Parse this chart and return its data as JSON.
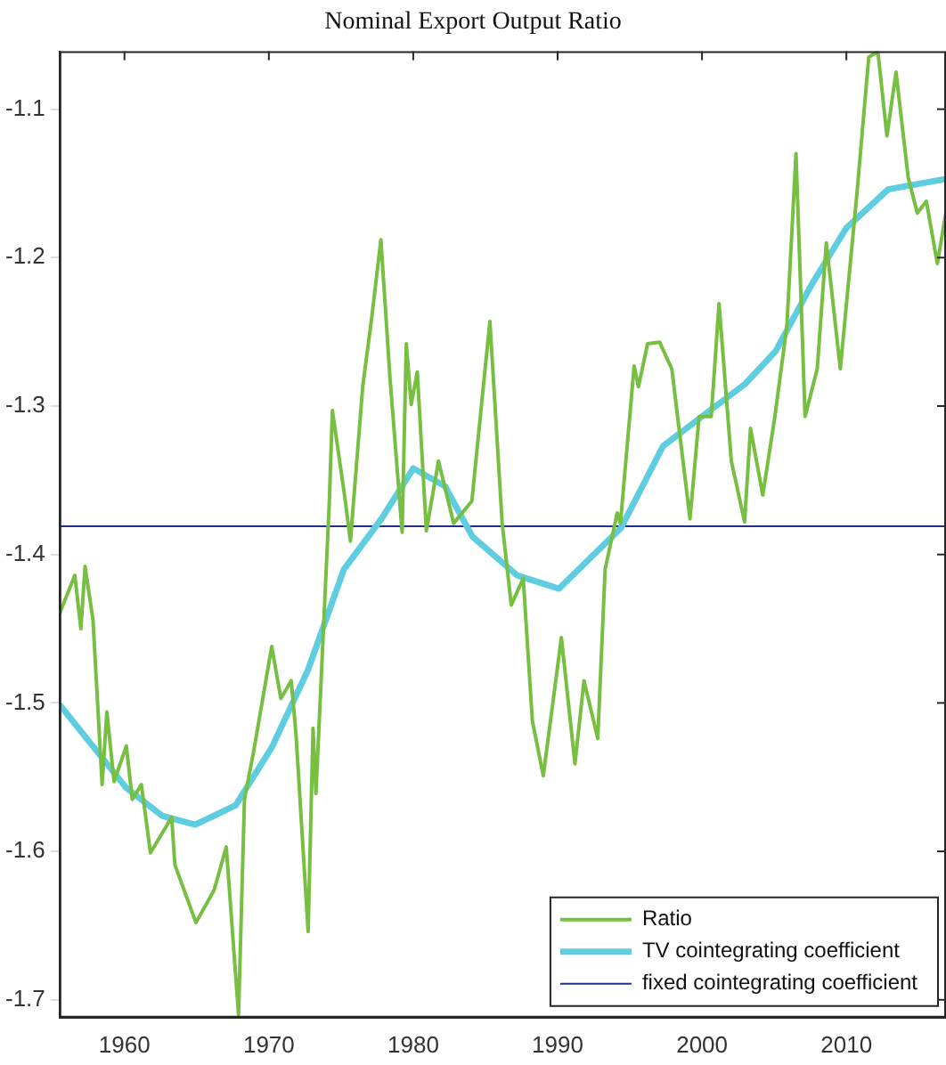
{
  "chart_data": {
    "type": "line",
    "title": "Nominal Export Output Ratio",
    "xlim": [
      1955.5,
      2016.9
    ],
    "xticks": [
      1960,
      1970,
      1980,
      1990,
      2000,
      2010
    ],
    "ylim": [
      -1.712,
      -1.061
    ],
    "yticks": [
      -1.1,
      -1.2,
      -1.3,
      -1.4,
      -1.5,
      -1.6,
      -1.7
    ],
    "grid": false,
    "legend": "bottom right",
    "marker": "none",
    "series": [
      {
        "name": "Ratio",
        "color": "#77bf41",
        "x": [
          1955.5,
          1956.56,
          1956.98,
          1957.27,
          1957.82,
          1958.45,
          1958.78,
          1959.28,
          1960.13,
          1960.54,
          1961.17,
          1961.8,
          1963.27,
          1963.49,
          1964.95,
          1966.21,
          1967.05,
          1967.9,
          1968.31,
          1968.94,
          1970.2,
          1970.83,
          1971.55,
          1971.88,
          1972.72,
          1973.06,
          1973.26,
          1974.19,
          1974.4,
          1975.24,
          1975.65,
          1976.5,
          1977.13,
          1977.76,
          1978.39,
          1979.23,
          1979.52,
          1979.86,
          1980.28,
          1980.91,
          1981.75,
          1982.8,
          1984.06,
          1985.31,
          1986.16,
          1986.79,
          1987.62,
          1988.25,
          1989.01,
          1990.26,
          1991.2,
          1991.83,
          1992.78,
          1993.29,
          1994.13,
          1994.35,
          1995.3,
          1995.6,
          1996.23,
          1997.07,
          1997.91,
          1999.17,
          1999.8,
          2000.64,
          2001.18,
          2002.03,
          2002.95,
          2003.36,
          2004.21,
          2005.05,
          2005.88,
          2006.51,
          2007.14,
          2007.98,
          2008.61,
          2009.58,
          2010.29,
          2010.72,
          2011.55,
          2012.18,
          2012.81,
          2013.44,
          2014.28,
          2014.91,
          2015.54,
          2016.3,
          2016.89
        ],
        "values": [
          -1.44,
          -1.414,
          -1.45,
          -1.408,
          -1.444,
          -1.555,
          -1.506,
          -1.553,
          -1.529,
          -1.565,
          -1.555,
          -1.601,
          -1.577,
          -1.609,
          -1.648,
          -1.626,
          -1.597,
          -1.71,
          -1.565,
          -1.533,
          -1.462,
          -1.497,
          -1.485,
          -1.521,
          -1.654,
          -1.517,
          -1.561,
          -1.364,
          -1.303,
          -1.36,
          -1.391,
          -1.287,
          -1.24,
          -1.188,
          -1.281,
          -1.385,
          -1.258,
          -1.299,
          -1.277,
          -1.384,
          -1.337,
          -1.379,
          -1.364,
          -1.243,
          -1.379,
          -1.434,
          -1.416,
          -1.512,
          -1.549,
          -1.456,
          -1.541,
          -1.485,
          -1.524,
          -1.41,
          -1.372,
          -1.379,
          -1.273,
          -1.287,
          -1.258,
          -1.257,
          -1.275,
          -1.376,
          -1.307,
          -1.307,
          -1.231,
          -1.337,
          -1.378,
          -1.315,
          -1.36,
          -1.307,
          -1.246,
          -1.13,
          -1.307,
          -1.275,
          -1.19,
          -1.275,
          -1.202,
          -1.158,
          -1.065,
          -1.061,
          -1.118,
          -1.075,
          -1.146,
          -1.17,
          -1.162,
          -1.204,
          -1.17
        ]
      },
      {
        "name": "TV cointegrating coefficient",
        "color": "#5fcde0",
        "x": [
          1955.5,
          1960.1,
          1962.6,
          1964.9,
          1967.7,
          1970.2,
          1972.7,
          1975.2,
          1977.8,
          1980,
          1982.2,
          1984.1,
          1987.2,
          1990.1,
          1994.4,
          1997.3,
          2000,
          2003,
          2005.1,
          2007.6,
          2010,
          2012.9,
          2016.9
        ],
        "values": [
          -1.501,
          -1.557,
          -1.576,
          -1.582,
          -1.569,
          -1.53,
          -1.478,
          -1.41,
          -1.376,
          -1.342,
          -1.354,
          -1.388,
          -1.414,
          -1.423,
          -1.382,
          -1.327,
          -1.307,
          -1.285,
          -1.263,
          -1.218,
          -1.18,
          -1.154,
          -1.147
        ]
      },
      {
        "name": "fixed cointegrating coefficient",
        "color": "#1f2f8a",
        "x": [
          1955.5,
          2016.9
        ],
        "values": [
          -1.381,
          -1.381
        ]
      }
    ]
  }
}
